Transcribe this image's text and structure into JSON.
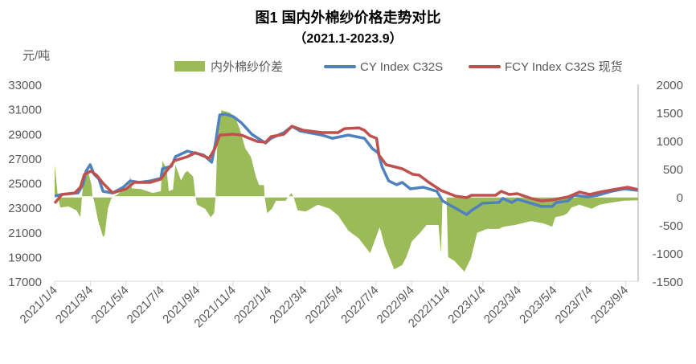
{
  "chart_data": {
    "type": "line",
    "title": "图1 国内外棉纱价格走势对比",
    "subtitle": "（2021.1-2023.9）",
    "ylabel": "元/吨",
    "x_unit": "months since 2021/1/4",
    "xlim": [
      0,
      32.7
    ],
    "ylim": [
      17000,
      33000
    ],
    "y2lim": [
      -1500,
      2000
    ],
    "yticks": [
      "33000",
      "31000",
      "29000",
      "27000",
      "25000",
      "23000",
      "21000",
      "19000",
      "17000"
    ],
    "y2ticks": [
      "2000",
      "1500",
      "1000",
      "500",
      "0",
      "-500",
      "-1000",
      "-1500"
    ],
    "xticks": [
      "2021/1/4",
      "2021/3/4",
      "2021/5/4",
      "2021/7/4",
      "2021/9/4",
      "2021/11/4",
      "2022/1/4",
      "2022/3/4",
      "2022/5/4",
      "2022/7/4",
      "2022/9/4",
      "2022/11/4",
      "2023/1/4",
      "2023/3/4",
      "2023/5/4",
      "2023/7/4",
      "2023/9/4"
    ],
    "legend_position": "top",
    "grid": false,
    "series": [
      {
        "name": "内外棉纱价差",
        "type": "area",
        "axis": "right",
        "color": "#9BBB59",
        "points": [
          [
            0,
            570
          ],
          [
            0.09,
            300
          ],
          [
            0.18,
            0
          ],
          [
            0.32,
            -190
          ],
          [
            0.77,
            -170
          ],
          [
            1.22,
            -240
          ],
          [
            1.44,
            -360
          ],
          [
            1.53,
            0
          ],
          [
            1.62,
            360
          ],
          [
            1.89,
            430
          ],
          [
            2.07,
            200
          ],
          [
            2.12,
            0
          ],
          [
            2.21,
            -70
          ],
          [
            2.44,
            -430
          ],
          [
            2.71,
            -710
          ],
          [
            2.8,
            -680
          ],
          [
            2.98,
            -210
          ],
          [
            3.16,
            -40
          ],
          [
            3.25,
            0
          ],
          [
            3.47,
            30
          ],
          [
            4.15,
            210
          ],
          [
            4.24,
            360
          ],
          [
            4.33,
            150
          ],
          [
            4.83,
            140
          ],
          [
            5.5,
            70
          ],
          [
            5.95,
            100
          ],
          [
            6.04,
            640
          ],
          [
            6.27,
            500
          ],
          [
            6.4,
            100
          ],
          [
            6.63,
            130
          ],
          [
            6.77,
            570
          ],
          [
            7.08,
            290
          ],
          [
            7.31,
            430
          ],
          [
            7.44,
            460
          ],
          [
            7.76,
            360
          ],
          [
            7.89,
            0
          ],
          [
            7.98,
            -140
          ],
          [
            8.43,
            -210
          ],
          [
            8.75,
            -360
          ],
          [
            8.93,
            -290
          ],
          [
            9.02,
            0
          ],
          [
            9.11,
            930
          ],
          [
            9.34,
            1540
          ],
          [
            9.79,
            1500
          ],
          [
            10.1,
            1430
          ],
          [
            10.37,
            1210
          ],
          [
            10.69,
            860
          ],
          [
            11.0,
            710
          ],
          [
            11.28,
            360
          ],
          [
            11.46,
            210
          ],
          [
            11.73,
            210
          ],
          [
            11.77,
            0
          ],
          [
            11.91,
            -290
          ],
          [
            12.18,
            -210
          ],
          [
            12.4,
            -70
          ],
          [
            12.94,
            -70
          ],
          [
            13.17,
            30
          ],
          [
            13.26,
            70
          ],
          [
            13.39,
            0
          ],
          [
            13.62,
            -240
          ],
          [
            14.07,
            -260
          ],
          [
            14.75,
            -140
          ],
          [
            15.42,
            -210
          ],
          [
            15.88,
            -330
          ],
          [
            16.46,
            -600
          ],
          [
            17.05,
            -740
          ],
          [
            17.68,
            -1000
          ],
          [
            18.22,
            -540
          ],
          [
            18.49,
            -860
          ],
          [
            19.03,
            -1290
          ],
          [
            19.48,
            -1210
          ],
          [
            19.71,
            -1070
          ],
          [
            20.02,
            -790
          ],
          [
            20.48,
            -640
          ],
          [
            20.84,
            -500
          ],
          [
            21.51,
            -500
          ],
          [
            21.65,
            -1000
          ],
          [
            21.74,
            0
          ],
          [
            21.96,
            0
          ],
          [
            22.05,
            -1070
          ],
          [
            22.41,
            -1140
          ],
          [
            22.96,
            -1330
          ],
          [
            23.32,
            -1100
          ],
          [
            23.68,
            -640
          ],
          [
            24.22,
            -570
          ],
          [
            24.89,
            -570
          ],
          [
            25.17,
            -530
          ],
          [
            25.8,
            -500
          ],
          [
            26.7,
            -430
          ],
          [
            27.38,
            -470
          ],
          [
            27.88,
            -530
          ],
          [
            28.06,
            -360
          ],
          [
            28.51,
            -330
          ],
          [
            28.74,
            -290
          ],
          [
            28.96,
            -190
          ],
          [
            29.41,
            -140
          ],
          [
            30.09,
            -210
          ],
          [
            30.54,
            -140
          ],
          [
            31.21,
            -100
          ],
          [
            31.89,
            -70
          ],
          [
            32.7,
            -60
          ]
        ]
      },
      {
        "name": "CY Index C32S",
        "type": "line",
        "axis": "left",
        "color": "#4F81BD",
        "points": [
          [
            0,
            23920
          ],
          [
            0.41,
            24050
          ],
          [
            1.31,
            24180
          ],
          [
            1.58,
            24840
          ],
          [
            1.76,
            25950
          ],
          [
            1.99,
            26470
          ],
          [
            2.21,
            25690
          ],
          [
            2.48,
            25300
          ],
          [
            2.71,
            24310
          ],
          [
            3.25,
            24180
          ],
          [
            3.84,
            24640
          ],
          [
            4.24,
            25160
          ],
          [
            4.74,
            25030
          ],
          [
            5.37,
            25160
          ],
          [
            5.95,
            25360
          ],
          [
            6.04,
            26140
          ],
          [
            6.54,
            26340
          ],
          [
            6.77,
            27120
          ],
          [
            7.44,
            27580
          ],
          [
            7.76,
            27450
          ],
          [
            8.35,
            27250
          ],
          [
            8.8,
            26670
          ],
          [
            9.02,
            28300
          ],
          [
            9.25,
            30520
          ],
          [
            9.56,
            30580
          ],
          [
            10.01,
            30390
          ],
          [
            10.47,
            29870
          ],
          [
            11.05,
            28950
          ],
          [
            11.46,
            28560
          ],
          [
            11.82,
            28230
          ],
          [
            12.13,
            28620
          ],
          [
            12.85,
            29080
          ],
          [
            13.3,
            29600
          ],
          [
            13.76,
            29210
          ],
          [
            14.98,
            28880
          ],
          [
            15.56,
            28620
          ],
          [
            16.46,
            28880
          ],
          [
            17.36,
            28620
          ],
          [
            17.81,
            27770
          ],
          [
            18.13,
            27450
          ],
          [
            18.36,
            26270
          ],
          [
            18.72,
            25160
          ],
          [
            19.17,
            24840
          ],
          [
            19.48,
            25030
          ],
          [
            19.93,
            24510
          ],
          [
            20.66,
            24640
          ],
          [
            21.42,
            24310
          ],
          [
            21.74,
            23530
          ],
          [
            23.09,
            22420
          ],
          [
            23.36,
            22750
          ],
          [
            23.99,
            23340
          ],
          [
            24.89,
            23400
          ],
          [
            25.12,
            23730
          ],
          [
            25.62,
            23400
          ],
          [
            25.93,
            23660
          ],
          [
            26.7,
            23340
          ],
          [
            27.29,
            23080
          ],
          [
            27.88,
            23080
          ],
          [
            28.1,
            23400
          ],
          [
            28.78,
            23530
          ],
          [
            29.09,
            23990
          ],
          [
            29.86,
            23860
          ],
          [
            30.44,
            23990
          ],
          [
            31.21,
            24310
          ],
          [
            31.93,
            24510
          ],
          [
            32.7,
            24380
          ]
        ]
      },
      {
        "name": "FCY Index C32S 现货",
        "type": "line",
        "axis": "left",
        "color": "#C0504D",
        "points": [
          [
            0,
            23340
          ],
          [
            0.41,
            24050
          ],
          [
            1.13,
            24180
          ],
          [
            1.44,
            24640
          ],
          [
            1.67,
            25690
          ],
          [
            2.03,
            25950
          ],
          [
            2.35,
            25620
          ],
          [
            2.71,
            24970
          ],
          [
            2.93,
            24640
          ],
          [
            3.25,
            24180
          ],
          [
            4.01,
            24510
          ],
          [
            4.46,
            25030
          ],
          [
            5.37,
            25030
          ],
          [
            5.95,
            25300
          ],
          [
            6.27,
            25950
          ],
          [
            6.72,
            26800
          ],
          [
            7.44,
            27120
          ],
          [
            7.89,
            27450
          ],
          [
            8.66,
            26990
          ],
          [
            8.97,
            27770
          ],
          [
            9.25,
            28880
          ],
          [
            10.01,
            28950
          ],
          [
            10.47,
            28880
          ],
          [
            10.91,
            28620
          ],
          [
            11.37,
            28360
          ],
          [
            11.82,
            28300
          ],
          [
            12.13,
            28750
          ],
          [
            12.85,
            28950
          ],
          [
            13.3,
            29600
          ],
          [
            13.94,
            29270
          ],
          [
            14.98,
            29080
          ],
          [
            15.88,
            29080
          ],
          [
            16.24,
            29400
          ],
          [
            17.05,
            29470
          ],
          [
            17.36,
            29270
          ],
          [
            17.68,
            28820
          ],
          [
            18.04,
            28620
          ],
          [
            18.18,
            27250
          ],
          [
            18.58,
            26470
          ],
          [
            19.48,
            26140
          ],
          [
            20.07,
            25690
          ],
          [
            20.43,
            25620
          ],
          [
            20.97,
            25030
          ],
          [
            21.65,
            24380
          ],
          [
            22.46,
            23920
          ],
          [
            23.09,
            23790
          ],
          [
            23.36,
            23990
          ],
          [
            24.71,
            23990
          ],
          [
            25.03,
            24310
          ],
          [
            25.48,
            24050
          ],
          [
            25.93,
            24120
          ],
          [
            26.7,
            23730
          ],
          [
            27.29,
            23530
          ],
          [
            27.88,
            23600
          ],
          [
            28.78,
            23860
          ],
          [
            29.41,
            24250
          ],
          [
            29.99,
            24050
          ],
          [
            30.58,
            24250
          ],
          [
            31.34,
            24450
          ],
          [
            32.11,
            24640
          ],
          [
            32.7,
            24450
          ]
        ]
      }
    ]
  }
}
